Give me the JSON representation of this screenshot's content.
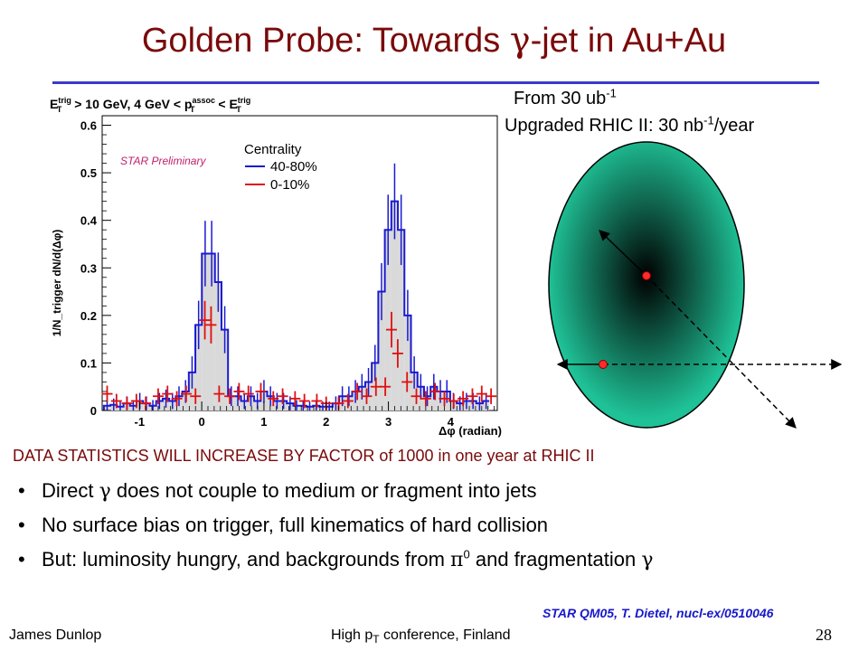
{
  "slide": {
    "title_prefix": "Golden Probe: Towards ",
    "title_greek": "γ",
    "title_suffix": "-jet in Au+Au"
  },
  "side_notes": {
    "from_text": "From 30 ub",
    "from_sup": "-1",
    "upgrade_text": "Upgraded RHIC II: 30 nb",
    "upgrade_sup": "-1",
    "upgrade_suffix": "/year"
  },
  "stats_line": "DATA STATISTICS WILL INCREASE BY FACTOR of 1000 in one year at RHIC II",
  "bullets": [
    {
      "pre": "Direct ",
      "greek": "γ",
      "post": " does not couple to medium or fragment into jets"
    },
    {
      "pre": "No surface bias on trigger, full kinematics of hard collision",
      "greek": "",
      "post": ""
    },
    {
      "pre": "But: luminosity hungry, and backgrounds from ",
      "greek": "π",
      "sup": "0",
      "post": " and fragmentation ",
      "greek2": "γ"
    }
  ],
  "citation": "STAR QM05, T. Dietel, nucl-ex/0510046",
  "footer": {
    "author": "James Dunlop",
    "conf_pre": "High p",
    "conf_sub": "T",
    "conf_post": " conference, Finland",
    "page": "28"
  },
  "colors": {
    "title": "#7a0a0a",
    "rule": "#3b3bc8",
    "series_peripheral": "#1a1ad0",
    "series_central": "#e01010",
    "hist_fill": "#d9d9d9",
    "ellipse": "#1fc196",
    "ellipse_core": "#000000",
    "point": "#ff2a2a",
    "citation": "#1818c8",
    "preliminary": "#c0206a"
  },
  "chart_data": {
    "type": "line",
    "title": "E_T^trig > 10 GeV, 4 GeV < p_T^assoc < E_T^trig",
    "xlabel": "Δφ (radian)",
    "ylabel": "1/N_trigger dN/d(Δφ)",
    "xlim": [
      -1.6,
      4.75
    ],
    "ylim": [
      0,
      0.62
    ],
    "xticks": [
      -1,
      0,
      1,
      2,
      3,
      4
    ],
    "yticks": [
      0,
      0.1,
      0.2,
      0.3,
      0.4,
      0.5,
      0.6
    ],
    "ytick_labels": [
      "0",
      "0.1",
      "0.2",
      "0.3",
      "0.4",
      "0.5",
      "0.6"
    ],
    "xtick_labels": [
      "-1",
      "0",
      "1",
      "2",
      "3",
      "4"
    ],
    "preliminary_label": "STAR Preliminary",
    "legend_title": "Centrality",
    "legend_position": "top-center",
    "grid": false,
    "series": [
      {
        "name": "40-80%",
        "style": "histogram",
        "bin_width": 0.105,
        "x": [
          -1.52,
          -1.415,
          -1.31,
          -1.205,
          -1.1,
          -0.995,
          -0.89,
          -0.785,
          -0.68,
          -0.575,
          -0.47,
          -0.365,
          -0.26,
          -0.155,
          -0.05,
          0.055,
          0.16,
          0.265,
          0.37,
          0.475,
          0.58,
          0.685,
          0.79,
          0.895,
          1.0,
          1.105,
          1.21,
          1.315,
          1.42,
          1.525,
          1.63,
          1.735,
          1.84,
          1.945,
          2.05,
          2.155,
          2.26,
          2.365,
          2.47,
          2.575,
          2.68,
          2.785,
          2.89,
          2.995,
          3.1,
          3.205,
          3.31,
          3.415,
          3.52,
          3.625,
          3.73,
          3.835,
          3.94,
          4.045,
          4.15,
          4.255,
          4.36,
          4.465,
          4.57
        ],
        "values": [
          0.01,
          0.012,
          0.008,
          0.015,
          0.01,
          0.02,
          0.015,
          0.01,
          0.02,
          0.025,
          0.02,
          0.03,
          0.04,
          0.08,
          0.18,
          0.33,
          0.33,
          0.27,
          0.17,
          0.03,
          0.03,
          0.02,
          0.03,
          0.02,
          0.04,
          0.03,
          0.02,
          0.02,
          0.015,
          0.01,
          0.01,
          0.008,
          0.01,
          0.008,
          0.008,
          0.015,
          0.03,
          0.03,
          0.04,
          0.05,
          0.06,
          0.1,
          0.25,
          0.38,
          0.44,
          0.38,
          0.2,
          0.08,
          0.05,
          0.03,
          0.05,
          0.04,
          0.04,
          0.02,
          0.015,
          0.02,
          0.02,
          0.015,
          0.02
        ]
      },
      {
        "name": "0-10%",
        "style": "points",
        "x": [
          -1.52,
          -1.37,
          -1.2,
          -1.05,
          -0.9,
          -0.7,
          -0.55,
          -0.4,
          -0.25,
          -0.1,
          0.05,
          0.15,
          0.28,
          0.45,
          0.6,
          0.75,
          0.95,
          1.15,
          1.3,
          1.5,
          1.65,
          1.85,
          2.0,
          2.2,
          2.35,
          2.5,
          2.65,
          2.8,
          2.95,
          3.05,
          3.15,
          3.3,
          3.45,
          3.6,
          3.75,
          3.9,
          4.05,
          4.2,
          4.35,
          4.5,
          4.65
        ],
        "values": [
          0.035,
          0.02,
          0.015,
          0.02,
          0.015,
          0.03,
          0.035,
          0.025,
          0.035,
          0.03,
          0.19,
          0.18,
          0.035,
          0.03,
          0.04,
          0.035,
          0.04,
          0.025,
          0.03,
          0.025,
          0.02,
          0.02,
          0.015,
          0.015,
          0.02,
          0.04,
          0.03,
          0.05,
          0.05,
          0.17,
          0.12,
          0.06,
          0.03,
          0.025,
          0.04,
          0.025,
          0.02,
          0.025,
          0.03,
          0.035,
          0.03
        ]
      }
    ]
  }
}
